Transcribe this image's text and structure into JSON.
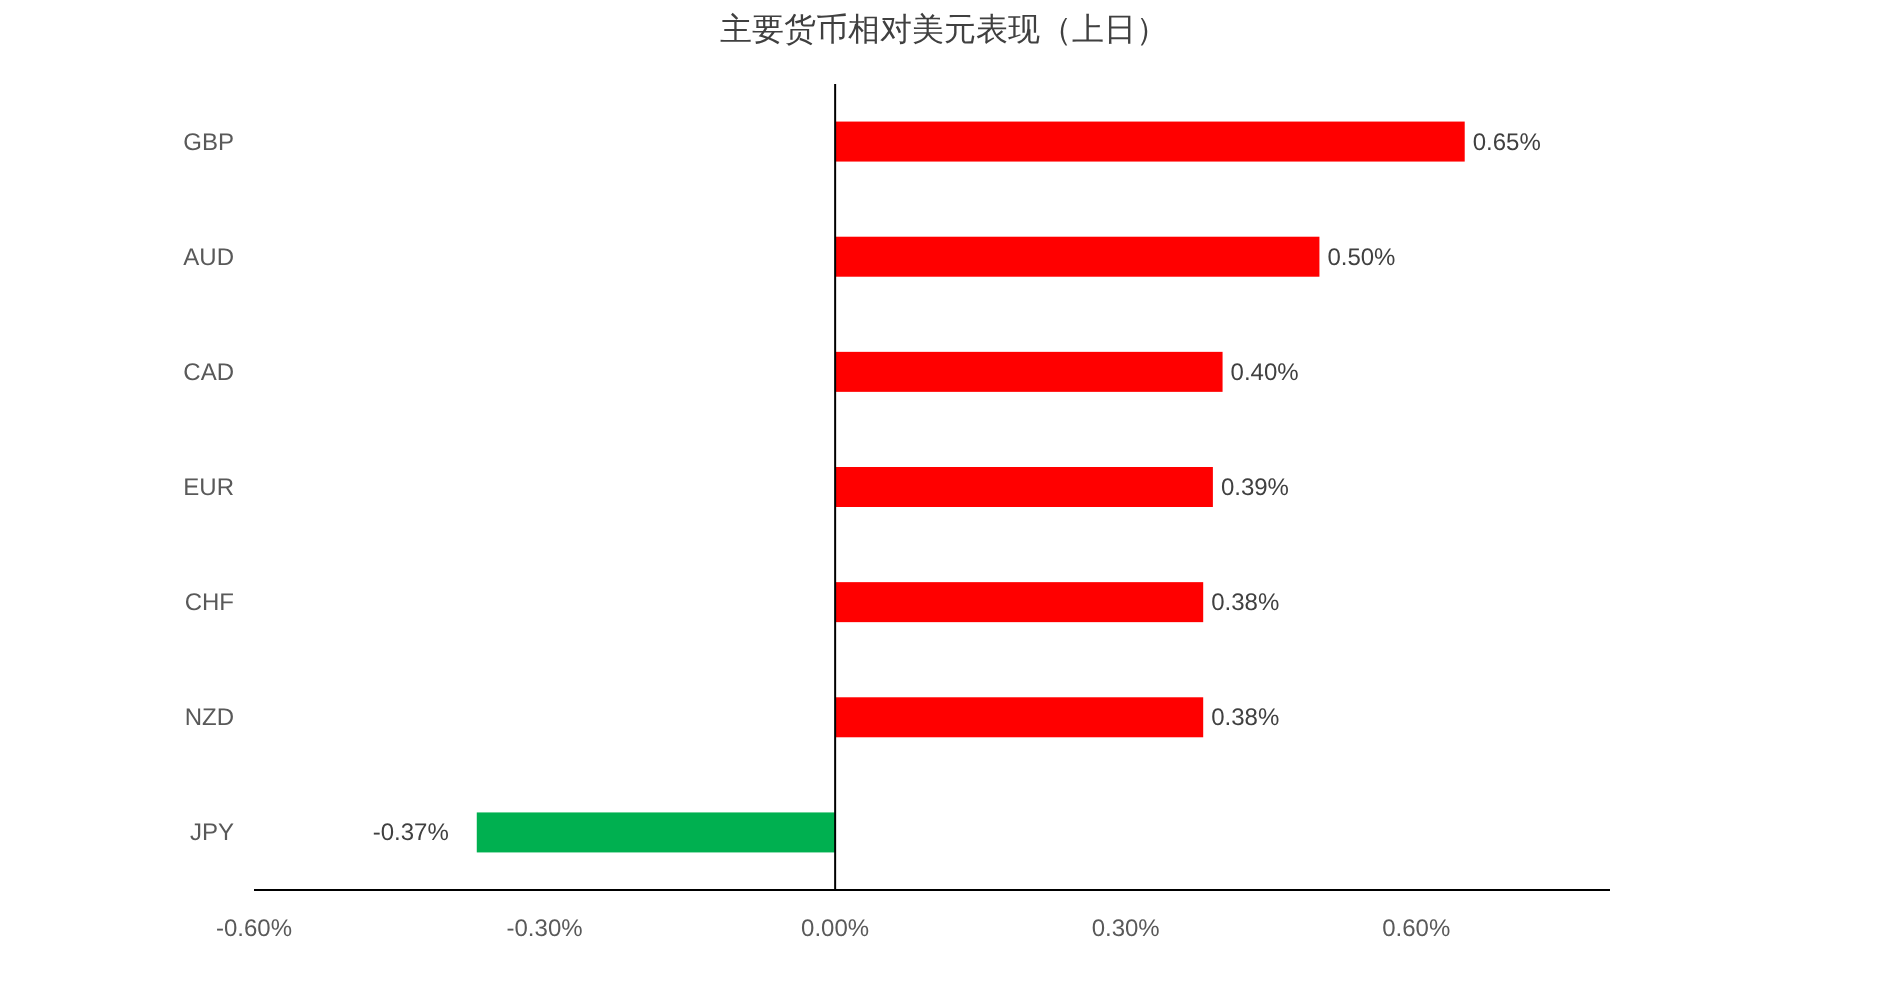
{
  "chart_data": {
    "type": "bar",
    "orientation": "horizontal",
    "title": "主要货币相对美元表现（上日）",
    "categories": [
      "GBP",
      "AUD",
      "CAD",
      "EUR",
      "CHF",
      "NZD",
      "JPY"
    ],
    "values": [
      0.65,
      0.5,
      0.4,
      0.39,
      0.38,
      0.38,
      -0.37
    ],
    "colors": [
      "#ff0000",
      "#ff0000",
      "#ff0000",
      "#ff0000",
      "#ff0000",
      "#ff0000",
      "#00b050"
    ],
    "value_labels": [
      "0.65%",
      "0.50%",
      "0.40%",
      "0.39%",
      "0.38%",
      "0.38%",
      "-0.37%"
    ],
    "xlim": [
      -0.6,
      0.8
    ],
    "xticks": [
      {
        "value": -0.6,
        "label": "-0.60%"
      },
      {
        "value": -0.3,
        "label": "-0.30%"
      },
      {
        "value": 0,
        "label": "0.00%"
      },
      {
        "value": 0.3,
        "label": "0.30%"
      },
      {
        "value": 0.6,
        "label": "0.60%"
      }
    ]
  }
}
